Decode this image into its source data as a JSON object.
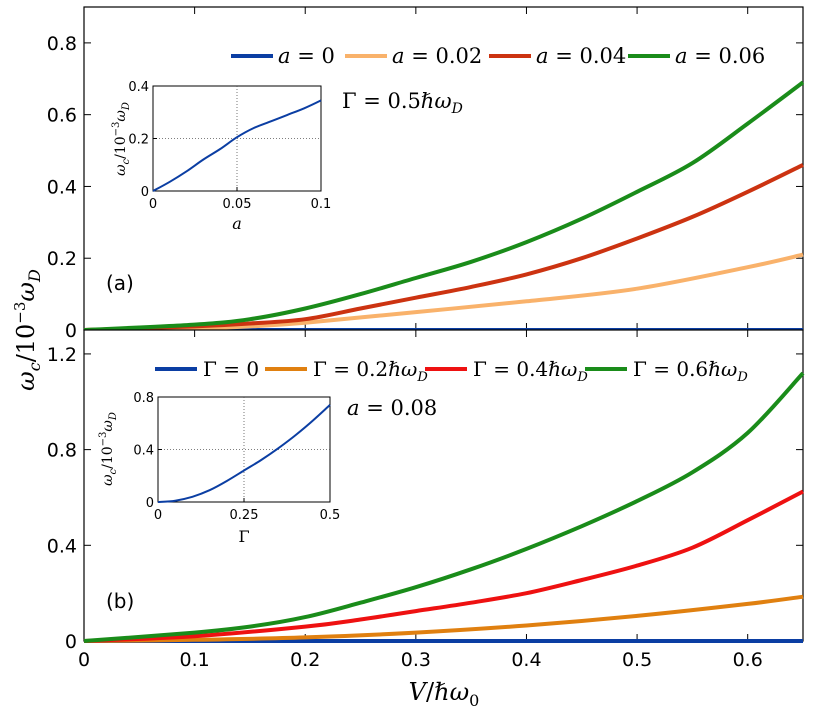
{
  "chart_data": [
    {
      "id": "a",
      "type": "line",
      "panel_label": "(a)",
      "annotation": "Γ = 0.5ℏω_D",
      "xlim": [
        0,
        0.65
      ],
      "ylim": [
        0,
        0.9
      ],
      "yticks": [
        0,
        0.2,
        0.4,
        0.6,
        0.8
      ],
      "ytick_labels": [
        "0",
        "0.2",
        "0.4",
        "0.6",
        "0.8"
      ],
      "legend": "top",
      "series": [
        {
          "name": "a = 0",
          "color": "#0b3ea3",
          "x": [
            0,
            0.65
          ],
          "y": [
            0,
            0
          ]
        },
        {
          "name": "a = 0.02",
          "color": "#f9b26b",
          "x": [
            0,
            0.1,
            0.15,
            0.2,
            0.3,
            0.4,
            0.5,
            0.6,
            0.65
          ],
          "y": [
            0,
            0.004,
            0.01,
            0.02,
            0.05,
            0.08,
            0.115,
            0.175,
            0.21
          ]
        },
        {
          "name": "a = 0.04",
          "color": "#cc3311",
          "x": [
            0,
            0.1,
            0.15,
            0.2,
            0.25,
            0.3,
            0.35,
            0.4,
            0.45,
            0.5,
            0.55,
            0.6,
            0.65
          ],
          "y": [
            0,
            0.01,
            0.018,
            0.03,
            0.06,
            0.09,
            0.12,
            0.155,
            0.2,
            0.255,
            0.315,
            0.385,
            0.46
          ]
        },
        {
          "name": "a = 0.06",
          "color": "#1a8c1a",
          "x": [
            0,
            0.1,
            0.15,
            0.2,
            0.25,
            0.3,
            0.35,
            0.4,
            0.45,
            0.5,
            0.55,
            0.6,
            0.65
          ],
          "y": [
            0,
            0.015,
            0.03,
            0.06,
            0.1,
            0.145,
            0.19,
            0.245,
            0.31,
            0.385,
            0.465,
            0.575,
            0.69
          ]
        }
      ],
      "inset": {
        "xlabel": "a",
        "ylabel": "ω_c/10⁻³ω_D",
        "xlim": [
          0,
          0.1
        ],
        "ylim": [
          0,
          0.4
        ],
        "xticks": [
          0,
          0.05,
          0.1
        ],
        "xtick_labels": [
          "0",
          "0.05",
          "0.1"
        ],
        "yticks": [
          0,
          0.2,
          0.4
        ],
        "ytick_labels": [
          "0",
          "0.2",
          "0.4"
        ],
        "gridlines": [
          0.05,
          0.2
        ],
        "color": "#0b3ea3",
        "x": [
          0,
          0.01,
          0.02,
          0.03,
          0.04,
          0.05,
          0.06,
          0.07,
          0.08,
          0.09,
          0.1
        ],
        "y": [
          0,
          0.035,
          0.075,
          0.12,
          0.16,
          0.205,
          0.24,
          0.265,
          0.29,
          0.315,
          0.345
        ]
      }
    },
    {
      "id": "b",
      "type": "line",
      "panel_label": "(b)",
      "annotation": "a = 0.08",
      "xlim": [
        0,
        0.65
      ],
      "ylim": [
        0,
        1.3
      ],
      "yticks": [
        0,
        0.4,
        0.8,
        1.2
      ],
      "ytick_labels": [
        "0",
        "0.4",
        "0.8",
        "1.2"
      ],
      "legend": "top",
      "series": [
        {
          "name": "Γ = 0",
          "color": "#0b3ea3",
          "x": [
            0,
            0.65
          ],
          "y": [
            0,
            0
          ]
        },
        {
          "name": "Γ = 0.2ℏω_D",
          "color": "#e08010",
          "x": [
            0,
            0.1,
            0.2,
            0.3,
            0.4,
            0.5,
            0.6,
            0.65
          ],
          "y": [
            0,
            0.005,
            0.015,
            0.035,
            0.065,
            0.105,
            0.155,
            0.185
          ]
        },
        {
          "name": "Γ = 0.4ℏω_D",
          "color": "#ee1111",
          "x": [
            0,
            0.1,
            0.2,
            0.25,
            0.3,
            0.35,
            0.4,
            0.45,
            0.5,
            0.55,
            0.6,
            0.65
          ],
          "y": [
            0,
            0.02,
            0.06,
            0.09,
            0.125,
            0.16,
            0.2,
            0.255,
            0.315,
            0.39,
            0.505,
            0.625
          ]
        },
        {
          "name": "Γ = 0.6ℏω_D",
          "color": "#1a8c1a",
          "x": [
            0,
            0.1,
            0.15,
            0.2,
            0.25,
            0.3,
            0.35,
            0.4,
            0.45,
            0.5,
            0.55,
            0.6,
            0.65
          ],
          "y": [
            0,
            0.035,
            0.06,
            0.1,
            0.16,
            0.225,
            0.3,
            0.385,
            0.48,
            0.585,
            0.705,
            0.87,
            1.12
          ]
        }
      ],
      "inset": {
        "xlabel": "Γ",
        "ylabel": "ω_c/10⁻³ω_D",
        "xlim": [
          0,
          0.5
        ],
        "ylim": [
          0,
          0.8
        ],
        "xticks": [
          0,
          0.25,
          0.5
        ],
        "xtick_labels": [
          "0",
          "0.25",
          "0.5"
        ],
        "yticks": [
          0,
          0.4,
          0.8
        ],
        "ytick_labels": [
          "0",
          "0.4",
          "0.8"
        ],
        "gridlines": [
          0.25,
          0.4
        ],
        "color": "#0b3ea3",
        "x": [
          0,
          0.05,
          0.1,
          0.15,
          0.2,
          0.25,
          0.3,
          0.35,
          0.4,
          0.45,
          0.5
        ],
        "y": [
          0,
          0.01,
          0.04,
          0.09,
          0.16,
          0.24,
          0.32,
          0.41,
          0.51,
          0.62,
          0.74
        ]
      }
    }
  ],
  "shared_axes": {
    "xlabel": "V/ℏω₀",
    "ylabel": "ω_c/10⁻³ω_D",
    "xticks": [
      0,
      0.1,
      0.2,
      0.3,
      0.4,
      0.5,
      0.6
    ],
    "xtick_labels": [
      "0",
      "0.1",
      "0.2",
      "0.3",
      "0.4",
      "0.5",
      "0.6"
    ]
  }
}
